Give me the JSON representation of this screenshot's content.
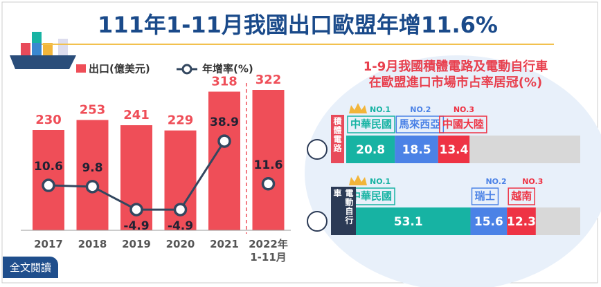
{
  "header": {
    "title": "111年1-11月我國出口歐盟年增11.6%"
  },
  "chart_data": [
    {
      "type": "bar-line",
      "categories": [
        "2017",
        "2018",
        "2019",
        "2020",
        "2021",
        "2022年\n1-11月"
      ],
      "series": [
        {
          "name": "出口(億美元)",
          "type": "bar",
          "color": "#ef4e58",
          "values": [
            230,
            253,
            241,
            229,
            318,
            322
          ]
        },
        {
          "name": "年增率(%)",
          "type": "line",
          "color": "#33475f",
          "values": [
            10.6,
            9.8,
            -4.9,
            -4.9,
            38.9,
            11.6
          ]
        }
      ],
      "dashed_divider_before_last": true
    },
    {
      "type": "stacked-hbar",
      "title": [
        "1-9月我國積體電路及電動自行車",
        "在歐盟進口市場市占率居冠(%)"
      ],
      "categories": [
        "積體電路",
        "電動自行車"
      ],
      "xlim": [
        0,
        100
      ],
      "series": [
        {
          "name": "NO.1",
          "color": "#17b3a3",
          "countries": [
            "中華民國",
            "中華民國"
          ],
          "values": [
            20.8,
            53.1
          ]
        },
        {
          "name": "NO.2",
          "color": "#4b82e6",
          "countries": [
            "馬來西亞",
            "瑞士"
          ],
          "values": [
            18.5,
            15.6
          ]
        },
        {
          "name": "NO.3",
          "color": "#ee3344",
          "countries": [
            "中國大陸",
            "越南"
          ],
          "values": [
            13.4,
            12.3
          ]
        }
      ]
    }
  ],
  "button": "全文閱讀"
}
